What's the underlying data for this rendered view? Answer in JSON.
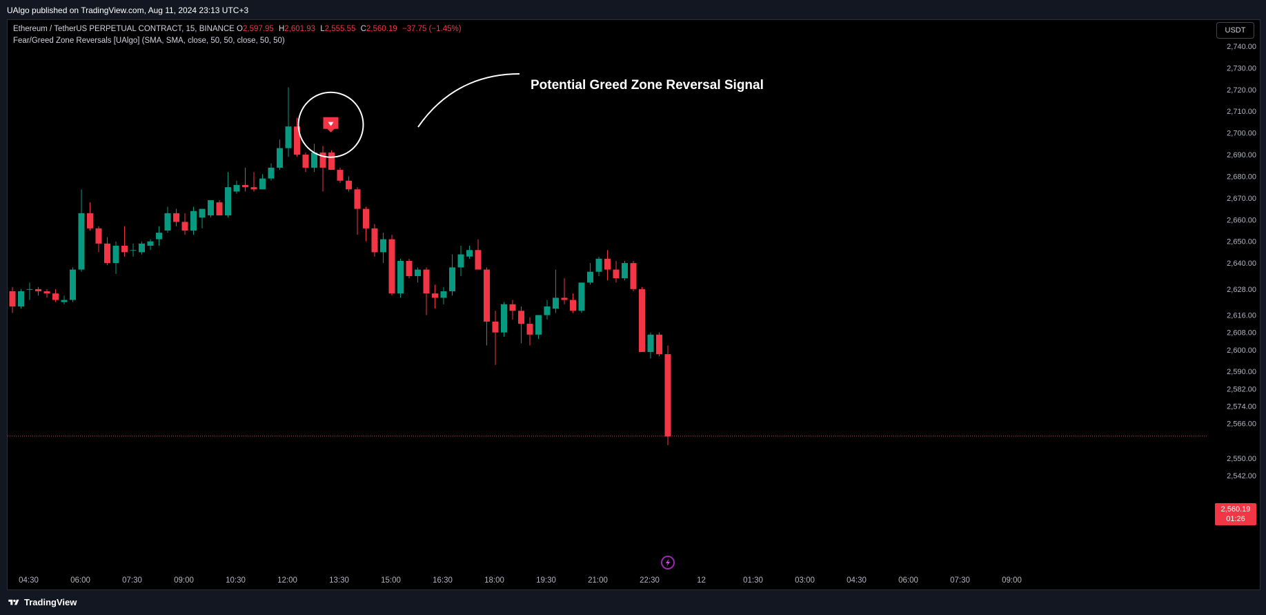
{
  "header": {
    "published_text": "UAlgo published on TradingView.com, Aug 11, 2024 23:13 UTC+3"
  },
  "legend": {
    "symbol": "Ethereum / TetherUS PERPETUAL CONTRACT, 15, BINANCE",
    "o_label": "O",
    "o_value": "2,597.95",
    "h_label": "H",
    "h_value": "2,601.93",
    "l_label": "L",
    "l_value": "2,555.55",
    "c_label": "C",
    "c_value": "2,560.19",
    "change": "−37.75 (−1.45%)",
    "indicator": "Fear/Greed Zone Reversals [UAlgo] (SMA, SMA, close, 50, 50, close, 50, 50)"
  },
  "currency_button": "USDT",
  "annotation": {
    "text": "Potential Greed Zone Reversal Signal",
    "signal_icon": "down-triangle-icon"
  },
  "price_badge": {
    "price": "2,560.19",
    "countdown": "01:26"
  },
  "footer": {
    "logo_text": "TradingView",
    "logo_icon": "tradingview-logo-icon"
  },
  "colors": {
    "up": "#089981",
    "down": "#f23645",
    "background": "#000000",
    "axis_text": "#b2b5be"
  },
  "chart_data": {
    "type": "candlestick",
    "symbol": "ETHUSDT.P",
    "interval": "15",
    "y_ticks": [
      2542,
      2550,
      2560.19,
      2566,
      2574,
      2582,
      2590,
      2600,
      2608,
      2616,
      2628,
      2640,
      2650,
      2660,
      2670,
      2680,
      2690,
      2700,
      2710,
      2720,
      2730,
      2740
    ],
    "y_tick_labels": [
      "2,542.00",
      "2,550.00",
      "2,560.19",
      "2,566.00",
      "2,574.00",
      "2,582.00",
      "2,590.00",
      "2,600.00",
      "2,608.00",
      "2,616.00",
      "2,628.00",
      "2,640.00",
      "2,650.00",
      "2,660.00",
      "2,670.00",
      "2,680.00",
      "2,690.00",
      "2,700.00",
      "2,710.00",
      "2,720.00",
      "2,730.00",
      "2,740.00"
    ],
    "x_tick_labels": [
      "04:30",
      "06:00",
      "07:30",
      "09:00",
      "10:30",
      "12:00",
      "13:30",
      "15:00",
      "16:30",
      "18:00",
      "19:30",
      "21:00",
      "22:30",
      "12",
      "01:30",
      "03:00",
      "04:30",
      "06:00",
      "07:30",
      "09:00"
    ],
    "x_tick_bar_index": [
      1,
      7,
      13,
      19,
      25,
      31,
      37,
      43,
      49,
      55,
      61,
      67,
      73,
      79,
      85,
      91,
      97,
      103,
      109,
      115
    ],
    "last_price": 2560.19,
    "signal_bar_index": 37,
    "candles": [
      {
        "o": 2627,
        "h": 2629,
        "l": 2617,
        "c": 2620
      },
      {
        "o": 2620,
        "h": 2628,
        "l": 2619,
        "c": 2627
      },
      {
        "o": 2628,
        "h": 2631,
        "l": 2623,
        "c": 2628
      },
      {
        "o": 2628,
        "h": 2629,
        "l": 2625,
        "c": 2627
      },
      {
        "o": 2627,
        "h": 2628,
        "l": 2624,
        "c": 2626
      },
      {
        "o": 2626,
        "h": 2628,
        "l": 2622,
        "c": 2623
      },
      {
        "o": 2622,
        "h": 2625,
        "l": 2621,
        "c": 2623
      },
      {
        "o": 2623,
        "h": 2638,
        "l": 2622,
        "c": 2637
      },
      {
        "o": 2637,
        "h": 2674,
        "l": 2636,
        "c": 2663
      },
      {
        "o": 2663,
        "h": 2668,
        "l": 2655,
        "c": 2656
      },
      {
        "o": 2656,
        "h": 2657,
        "l": 2645,
        "c": 2649
      },
      {
        "o": 2649,
        "h": 2652,
        "l": 2639,
        "c": 2640
      },
      {
        "o": 2640,
        "h": 2650,
        "l": 2635,
        "c": 2648
      },
      {
        "o": 2648,
        "h": 2657,
        "l": 2643,
        "c": 2645
      },
      {
        "o": 2646,
        "h": 2649,
        "l": 2643,
        "c": 2646
      },
      {
        "o": 2645,
        "h": 2650,
        "l": 2644,
        "c": 2649
      },
      {
        "o": 2648,
        "h": 2651,
        "l": 2646,
        "c": 2650
      },
      {
        "o": 2651,
        "h": 2657,
        "l": 2648,
        "c": 2654
      },
      {
        "o": 2655,
        "h": 2666,
        "l": 2654,
        "c": 2663
      },
      {
        "o": 2663,
        "h": 2665,
        "l": 2657,
        "c": 2659
      },
      {
        "o": 2659,
        "h": 2663,
        "l": 2653,
        "c": 2655
      },
      {
        "o": 2655,
        "h": 2666,
        "l": 2653,
        "c": 2664
      },
      {
        "o": 2661,
        "h": 2665,
        "l": 2656,
        "c": 2665
      },
      {
        "o": 2662,
        "h": 2669,
        "l": 2661,
        "c": 2669
      },
      {
        "o": 2668,
        "h": 2669,
        "l": 2662,
        "c": 2662
      },
      {
        "o": 2662,
        "h": 2682,
        "l": 2661,
        "c": 2675
      },
      {
        "o": 2673,
        "h": 2678,
        "l": 2672,
        "c": 2676
      },
      {
        "o": 2676,
        "h": 2684,
        "l": 2673,
        "c": 2675
      },
      {
        "o": 2675,
        "h": 2682,
        "l": 2673,
        "c": 2674
      },
      {
        "o": 2674,
        "h": 2681,
        "l": 2674,
        "c": 2679
      },
      {
        "o": 2679,
        "h": 2686,
        "l": 2678,
        "c": 2684
      },
      {
        "o": 2684,
        "h": 2697,
        "l": 2683,
        "c": 2693
      },
      {
        "o": 2693,
        "h": 2721,
        "l": 2689,
        "c": 2703
      },
      {
        "o": 2703,
        "h": 2707,
        "l": 2689,
        "c": 2690
      },
      {
        "o": 2690,
        "h": 2691,
        "l": 2682,
        "c": 2684
      },
      {
        "o": 2684,
        "h": 2695,
        "l": 2682,
        "c": 2691
      },
      {
        "o": 2691,
        "h": 2694,
        "l": 2673,
        "c": 2684
      },
      {
        "o": 2691,
        "h": 2692,
        "l": 2683,
        "c": 2683
      },
      {
        "o": 2683,
        "h": 2684,
        "l": 2677,
        "c": 2678
      },
      {
        "o": 2678,
        "h": 2680,
        "l": 2673,
        "c": 2674
      },
      {
        "o": 2674,
        "h": 2675,
        "l": 2653,
        "c": 2665
      },
      {
        "o": 2665,
        "h": 2666,
        "l": 2650,
        "c": 2656
      },
      {
        "o": 2656,
        "h": 2658,
        "l": 2643,
        "c": 2645
      },
      {
        "o": 2645,
        "h": 2654,
        "l": 2640,
        "c": 2651
      },
      {
        "o": 2651,
        "h": 2653,
        "l": 2625,
        "c": 2626
      },
      {
        "o": 2626,
        "h": 2642,
        "l": 2624,
        "c": 2641
      },
      {
        "o": 2641,
        "h": 2642,
        "l": 2633,
        "c": 2634
      },
      {
        "o": 2634,
        "h": 2638,
        "l": 2631,
        "c": 2637
      },
      {
        "o": 2637,
        "h": 2638,
        "l": 2616,
        "c": 2626
      },
      {
        "o": 2626,
        "h": 2630,
        "l": 2619,
        "c": 2624
      },
      {
        "o": 2624,
        "h": 2629,
        "l": 2621,
        "c": 2627
      },
      {
        "o": 2627,
        "h": 2644,
        "l": 2625,
        "c": 2638
      },
      {
        "o": 2638,
        "h": 2648,
        "l": 2634,
        "c": 2644
      },
      {
        "o": 2643,
        "h": 2648,
        "l": 2642,
        "c": 2646
      },
      {
        "o": 2646,
        "h": 2651,
        "l": 2638,
        "c": 2637
      },
      {
        "o": 2637,
        "h": 2638,
        "l": 2602,
        "c": 2613
      },
      {
        "o": 2613,
        "h": 2618,
        "l": 2593,
        "c": 2608
      },
      {
        "o": 2608,
        "h": 2622,
        "l": 2606,
        "c": 2621
      },
      {
        "o": 2621,
        "h": 2623,
        "l": 2614,
        "c": 2618
      },
      {
        "o": 2618,
        "h": 2620,
        "l": 2603,
        "c": 2612
      },
      {
        "o": 2612,
        "h": 2615,
        "l": 2602,
        "c": 2607
      },
      {
        "o": 2607,
        "h": 2616,
        "l": 2605,
        "c": 2616
      },
      {
        "o": 2616,
        "h": 2623,
        "l": 2614,
        "c": 2620
      },
      {
        "o": 2619,
        "h": 2637,
        "l": 2617,
        "c": 2624
      },
      {
        "o": 2624,
        "h": 2633,
        "l": 2621,
        "c": 2623
      },
      {
        "o": 2623,
        "h": 2626,
        "l": 2617,
        "c": 2618
      },
      {
        "o": 2618,
        "h": 2631,
        "l": 2617,
        "c": 2631
      },
      {
        "o": 2631,
        "h": 2640,
        "l": 2630,
        "c": 2636
      },
      {
        "o": 2636,
        "h": 2643,
        "l": 2634,
        "c": 2642
      },
      {
        "o": 2642,
        "h": 2646,
        "l": 2632,
        "c": 2637
      },
      {
        "o": 2637,
        "h": 2641,
        "l": 2631,
        "c": 2633
      },
      {
        "o": 2633,
        "h": 2641,
        "l": 2632,
        "c": 2640
      },
      {
        "o": 2640,
        "h": 2641,
        "l": 2627,
        "c": 2628
      },
      {
        "o": 2628,
        "h": 2629,
        "l": 2599,
        "c": 2599
      },
      {
        "o": 2599,
        "h": 2608,
        "l": 2596,
        "c": 2607
      },
      {
        "o": 2607,
        "h": 2608,
        "l": 2597,
        "c": 2598
      },
      {
        "o": 2598,
        "h": 2602,
        "l": 2556,
        "c": 2560
      }
    ]
  }
}
